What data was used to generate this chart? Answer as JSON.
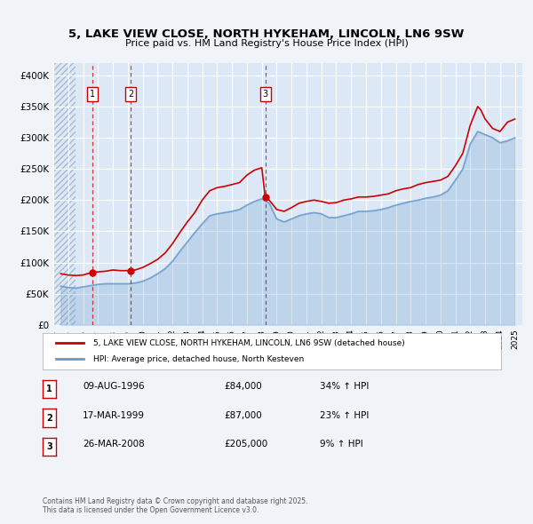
{
  "title": "5, LAKE VIEW CLOSE, NORTH HYKEHAM, LINCOLN, LN6 9SW",
  "subtitle": "Price paid vs. HM Land Registry's House Price Index (HPI)",
  "ylim": [
    0,
    420000
  ],
  "yticks": [
    0,
    50000,
    100000,
    150000,
    200000,
    250000,
    300000,
    350000,
    400000
  ],
  "ytick_labels": [
    "£0",
    "£50K",
    "£100K",
    "£150K",
    "£200K",
    "£250K",
    "£300K",
    "£350K",
    "£400K"
  ],
  "xlim_start": 1994.0,
  "xlim_end": 2025.5,
  "background_color": "#f0f4f8",
  "plot_bg_color": "#dce8f5",
  "grid_color": "#ffffff",
  "red_line_color": "#cc0000",
  "blue_line_color": "#6699cc",
  "red_dashed_color": "#cc0000",
  "sale_points": [
    {
      "year": 1996.6,
      "price": 84000,
      "label": "1"
    },
    {
      "year": 1999.2,
      "price": 87000,
      "label": "2"
    },
    {
      "year": 2008.23,
      "price": 205000,
      "label": "3"
    }
  ],
  "legend_entries": [
    "5, LAKE VIEW CLOSE, NORTH HYKEHAM, LINCOLN, LN6 9SW (detached house)",
    "HPI: Average price, detached house, North Kesteven"
  ],
  "table_rows": [
    {
      "num": "1",
      "date": "09-AUG-1996",
      "price": "£84,000",
      "change": "34% ↑ HPI"
    },
    {
      "num": "2",
      "date": "17-MAR-1999",
      "price": "£87,000",
      "change": "23% ↑ HPI"
    },
    {
      "num": "3",
      "date": "26-MAR-2008",
      "price": "£205,000",
      "change": "9% ↑ HPI"
    }
  ],
  "footer": "Contains HM Land Registry data © Crown copyright and database right 2025.\nThis data is licensed under the Open Government Licence v3.0.",
  "hpi_red_data": {
    "years": [
      1994.5,
      1995.0,
      1995.5,
      1996.0,
      1996.6,
      1997.0,
      1997.5,
      1998.0,
      1998.5,
      1999.0,
      1999.2,
      1999.5,
      2000.0,
      2000.5,
      2001.0,
      2001.5,
      2002.0,
      2002.5,
      2003.0,
      2003.5,
      2004.0,
      2004.5,
      2005.0,
      2005.5,
      2006.0,
      2006.5,
      2007.0,
      2007.5,
      2008.0,
      2008.23,
      2008.5,
      2009.0,
      2009.5,
      2010.0,
      2010.5,
      2011.0,
      2011.5,
      2012.0,
      2012.5,
      2013.0,
      2013.5,
      2014.0,
      2014.5,
      2015.0,
      2015.5,
      2016.0,
      2016.5,
      2017.0,
      2017.5,
      2018.0,
      2018.5,
      2019.0,
      2019.5,
      2020.0,
      2020.5,
      2021.0,
      2021.5,
      2022.0,
      2022.5,
      2022.7,
      2023.0,
      2023.5,
      2024.0,
      2024.5,
      2025.0
    ],
    "prices": [
      82000,
      80000,
      79000,
      80000,
      84000,
      85000,
      86000,
      88000,
      87000,
      87000,
      87000,
      88000,
      92000,
      98000,
      105000,
      115000,
      130000,
      148000,
      165000,
      180000,
      200000,
      215000,
      220000,
      222000,
      225000,
      228000,
      240000,
      248000,
      252000,
      205000,
      200000,
      185000,
      182000,
      188000,
      195000,
      198000,
      200000,
      198000,
      195000,
      196000,
      200000,
      202000,
      205000,
      205000,
      206000,
      208000,
      210000,
      215000,
      218000,
      220000,
      225000,
      228000,
      230000,
      232000,
      238000,
      255000,
      275000,
      320000,
      350000,
      345000,
      330000,
      315000,
      310000,
      325000,
      330000
    ]
  },
  "hpi_blue_data": {
    "years": [
      1994.5,
      1995.0,
      1995.5,
      1996.0,
      1996.5,
      1997.0,
      1997.5,
      1998.0,
      1998.5,
      1999.0,
      1999.5,
      2000.0,
      2000.5,
      2001.0,
      2001.5,
      2002.0,
      2002.5,
      2003.0,
      2003.5,
      2004.0,
      2004.5,
      2005.0,
      2005.5,
      2006.0,
      2006.5,
      2007.0,
      2007.5,
      2008.0,
      2008.5,
      2009.0,
      2009.5,
      2010.0,
      2010.5,
      2011.0,
      2011.5,
      2012.0,
      2012.5,
      2013.0,
      2013.5,
      2014.0,
      2014.5,
      2015.0,
      2015.5,
      2016.0,
      2016.5,
      2017.0,
      2017.5,
      2018.0,
      2018.5,
      2019.0,
      2019.5,
      2020.0,
      2020.5,
      2021.0,
      2021.5,
      2022.0,
      2022.5,
      2023.0,
      2023.5,
      2024.0,
      2024.5,
      2025.0
    ],
    "prices": [
      62000,
      60000,
      59000,
      61000,
      63000,
      65000,
      66000,
      66000,
      66000,
      66000,
      67000,
      70000,
      75000,
      82000,
      90000,
      102000,
      118000,
      133000,
      148000,
      162000,
      175000,
      178000,
      180000,
      182000,
      185000,
      192000,
      198000,
      202000,
      195000,
      170000,
      165000,
      170000,
      175000,
      178000,
      180000,
      178000,
      172000,
      172000,
      175000,
      178000,
      182000,
      182000,
      183000,
      185000,
      188000,
      192000,
      195000,
      198000,
      200000,
      203000,
      205000,
      208000,
      215000,
      232000,
      250000,
      290000,
      310000,
      305000,
      300000,
      292000,
      295000,
      300000
    ]
  }
}
